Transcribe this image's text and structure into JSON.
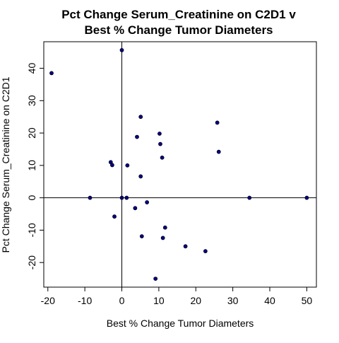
{
  "chart_data": {
    "type": "scatter",
    "title": "Pct Change Serum_Creatinine on C2D1 v",
    "subtitle": "Best % Change Tumor Diameters",
    "xlabel": "Best % Change Tumor Diameters",
    "ylabel": "Pct Change Serum_Creatinine on C2D1",
    "xlim": [
      -21.1,
      52.6
    ],
    "ylim": [
      -27.6,
      48.2
    ],
    "xticks": [
      -20,
      -10,
      0,
      10,
      20,
      30,
      40,
      50
    ],
    "yticks": [
      -20,
      -10,
      0,
      10,
      20,
      30,
      40
    ],
    "reference_lines": {
      "x": 0,
      "y": 0
    },
    "grid": false,
    "point_color": "#000080",
    "points": [
      {
        "x": -19,
        "y": 38.5
      },
      {
        "x": 0,
        "y": 45.6
      },
      {
        "x": -8.6,
        "y": 0
      },
      {
        "x": -3,
        "y": 11
      },
      {
        "x": -2.6,
        "y": 10.1
      },
      {
        "x": -2,
        "y": -5.8
      },
      {
        "x": 0,
        "y": 0
      },
      {
        "x": 1.3,
        "y": 0
      },
      {
        "x": 1.5,
        "y": 10
      },
      {
        "x": 3.6,
        "y": -3.2
      },
      {
        "x": 4.1,
        "y": 18.8
      },
      {
        "x": 5.1,
        "y": 25
      },
      {
        "x": 5.1,
        "y": 6.6
      },
      {
        "x": 5.4,
        "y": -11.9
      },
      {
        "x": 6.8,
        "y": -1.4
      },
      {
        "x": 9.1,
        "y": -25
      },
      {
        "x": 10.2,
        "y": 19.8
      },
      {
        "x": 10.4,
        "y": 16.6
      },
      {
        "x": 10.9,
        "y": 12.4
      },
      {
        "x": 11.1,
        "y": -12.4
      },
      {
        "x": 11.7,
        "y": -9.2
      },
      {
        "x": 17.2,
        "y": -15
      },
      {
        "x": 22.6,
        "y": -16.5
      },
      {
        "x": 25.8,
        "y": 23.2
      },
      {
        "x": 26.2,
        "y": 14.2
      },
      {
        "x": 34.5,
        "y": 0
      },
      {
        "x": 50,
        "y": 0
      }
    ]
  }
}
